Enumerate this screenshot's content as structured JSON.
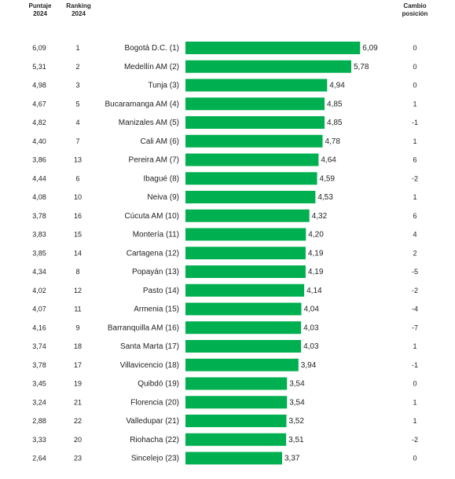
{
  "headers": {
    "score_label": "Puntaje",
    "score_year": "2024",
    "rank_label": "Ranking",
    "rank_year": "2024",
    "change_label": "Cambio",
    "change_sub": "posición"
  },
  "colors": {
    "bar": "#00b050",
    "text": "#1f1f1f"
  },
  "chart_data": {
    "type": "bar",
    "orientation": "horizontal",
    "title": "",
    "xlabel": "",
    "ylabel": "",
    "xlim": [
      0,
      6.4
    ],
    "grid": false,
    "categories": [
      "Bogotá D.C. (1)",
      "Medellín AM (2)",
      "Tunja (3)",
      "Bucaramanga AM (4)",
      "Manizales AM (5)",
      "Cali AM (6)",
      "Pereira AM (7)",
      "Ibagué (8)",
      "Neiva (9)",
      "Cúcuta AM (10)",
      "Montería (11)",
      "Cartagena (12)",
      "Popayán (13)",
      "Pasto (14)",
      "Armenia (15)",
      "Barranquilla AM (16)",
      "Santa Marta (17)",
      "Villavicencio (18)",
      "Quibdó (19)",
      "Florencia (20)",
      "Valledupar (21)",
      "Riohacha (22)",
      "Sincelejo (23)"
    ],
    "values": [
      6.09,
      5.78,
      4.94,
      4.85,
      4.85,
      4.78,
      4.64,
      4.59,
      4.53,
      4.32,
      4.2,
      4.19,
      4.19,
      4.14,
      4.04,
      4.03,
      4.03,
      3.94,
      3.54,
      3.54,
      3.52,
      3.51,
      3.37
    ],
    "value_labels": [
      "6,09",
      "5,78",
      "4,94",
      "4,85",
      "4,85",
      "4,78",
      "4,64",
      "4,59",
      "4,53",
      "4,32",
      "4,20",
      "4,19",
      "4,19",
      "4,14",
      "4,04",
      "4,03",
      "4,03",
      "3,94",
      "3,54",
      "3,54",
      "3,52",
      "3,51",
      "3,37"
    ],
    "score_2024": [
      "6,09",
      "5,31",
      "4,98",
      "4,67",
      "4,82",
      "4,40",
      "3,86",
      "4,44",
      "4,08",
      "3,78",
      "3,83",
      "3,85",
      "4,34",
      "4,02",
      "4,07",
      "4,16",
      "3,74",
      "3,78",
      "3,45",
      "3,24",
      "2,88",
      "3,33",
      "2,64"
    ],
    "ranking_2024": [
      "1",
      "2",
      "3",
      "5",
      "4",
      "7",
      "13",
      "6",
      "10",
      "16",
      "15",
      "14",
      "8",
      "12",
      "11",
      "9",
      "18",
      "17",
      "19",
      "21",
      "22",
      "20",
      "23"
    ],
    "position_change": [
      "0",
      "0",
      "0",
      "1",
      "-1",
      "1",
      "6",
      "-2",
      "1",
      "6",
      "4",
      "2",
      "-5",
      "-2",
      "-4",
      "-7",
      "1",
      "-1",
      "0",
      "1",
      "1",
      "-2",
      "0"
    ]
  }
}
